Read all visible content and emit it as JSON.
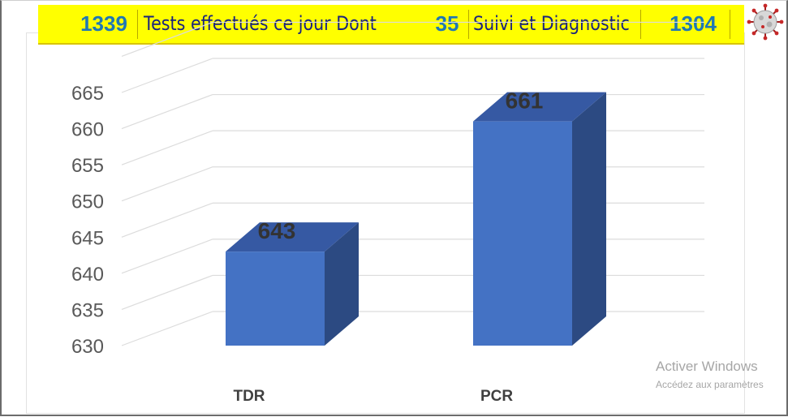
{
  "header": {
    "total_tests": "1339",
    "tests_label": "Tests effectués ce jour  Dont",
    "followup_count": "35",
    "followup_label": "Suivi et Diagnostic",
    "diagnostic_count": "1304"
  },
  "watermark": {
    "title": "Activer Windows",
    "subtitle": "Accédez aux paramètres"
  },
  "chart_data": {
    "type": "bar",
    "style": "3d-column",
    "categories": [
      "TDR",
      "PCR"
    ],
    "values": [
      643,
      661
    ],
    "data_labels": [
      "643",
      "661"
    ],
    "yticks": [
      "630",
      "635",
      "640",
      "645",
      "650",
      "655",
      "660",
      "665"
    ],
    "ylim": [
      630,
      665
    ],
    "grid": true,
    "legend": "none",
    "bar_color": "#4472c4",
    "bar_side_color": "#2c4a82",
    "bar_top_color": "#3659a3"
  }
}
